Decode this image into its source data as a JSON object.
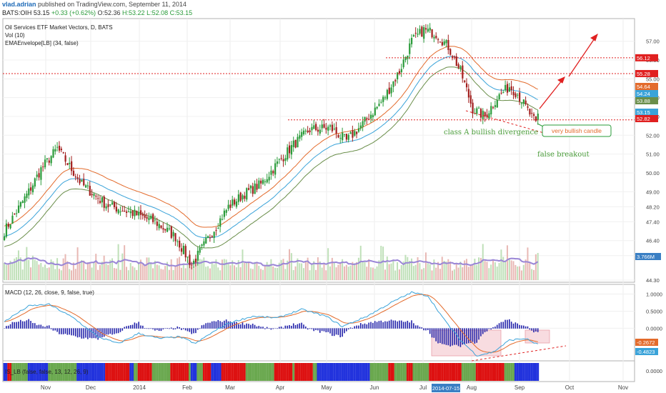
{
  "header": {
    "author": "vlad.adrian",
    "published_text": "published on TradingView.com, September 11, 2014",
    "symbol": "BATS:OIH",
    "last": "53.15",
    "change": "+0.33 (+0.62%)",
    "open": "O:52.36",
    "high": "H:53.22",
    "low": "L:52.08",
    "close": "C:53.15"
  },
  "indicators": {
    "title": "Oil Services ETF Market Vectors, D, BATS",
    "vol": "Vol (10)",
    "ema_env": "EMAEnvelope[LB] (34, false)",
    "macd": "MACD (12, 26, close, 9, false, true)",
    "is_lb": "IS_LB (false, false, 13, 12, 26, 9)"
  },
  "annotations": {
    "divergence": "class A bullish divergence",
    "bullish_candle": "very bullish candle",
    "false_breakout": "false breakout",
    "date_highlight": "2014-07-15"
  },
  "colors": {
    "up": "#2a9b3a",
    "down": "#a3201f",
    "ema_orange": "#e36b2c",
    "ema_blue": "#3aa3d9",
    "ema_green": "#6a8e4a",
    "hline": "#e02020",
    "macd_line": "#3aa3d9",
    "signal_line": "#e36b2c",
    "histogram": "#2222aa",
    "vol_ma": "#9a86d6"
  },
  "chart_data": {
    "type": "candlestick",
    "price_axis": {
      "ticks": [
        "57.00",
        "56.00",
        "55.00",
        "54.00",
        "53.00",
        "52.00",
        "51.00",
        "50.00",
        "49.00",
        "48.20",
        "47.40",
        "46.40",
        "45.60",
        "44.30"
      ],
      "ylim": [
        44.3,
        57.9
      ]
    },
    "price_labels": [
      {
        "value": 56.12,
        "text": "56.12",
        "color": "#e02020"
      },
      {
        "value": 55.28,
        "text": "55.28",
        "color": "#e02020"
      },
      {
        "value": 54.64,
        "text": "54.64",
        "color": "#e36b2c"
      },
      {
        "value": 54.24,
        "text": "54.24",
        "color": "#3aa3d9"
      },
      {
        "value": 53.88,
        "text": "53.88",
        "color": "#6a8e4a"
      },
      {
        "value": 53.15,
        "text": "53.15",
        "color": "#3aa3d9"
      },
      {
        "value": 52.82,
        "text": "52.82",
        "color": "#e02020"
      }
    ],
    "volume_label": "3.766M",
    "macd_axis": {
      "ticks": [
        "1.0000",
        "0.5000",
        "0.0000"
      ],
      "ylim": [
        -0.85,
        1.2
      ]
    },
    "macd_labels": [
      {
        "text": "-0.2672",
        "color": "#e36b2c"
      },
      {
        "text": "-0.4823",
        "color": "#3aa3d9"
      }
    ],
    "is_axis": {
      "ticks": [
        "0.0000"
      ]
    },
    "x_labels": [
      "Nov",
      "Dec",
      "2014",
      "Feb",
      "Mar",
      "Apr",
      "May",
      "Jun",
      "Jul",
      "Aug",
      "Sep",
      "Oct",
      "Nov"
    ],
    "hlines": [
      56.12,
      55.28,
      52.82
    ],
    "anchors": [
      [
        0,
        46.9
      ],
      [
        12,
        49.0
      ],
      [
        18,
        50.2
      ],
      [
        26,
        51.3
      ],
      [
        38,
        49.4
      ],
      [
        50,
        48.3
      ],
      [
        62,
        47.9
      ],
      [
        74,
        47.4
      ],
      [
        84,
        46.6
      ],
      [
        92,
        45.1
      ],
      [
        100,
        46.5
      ],
      [
        110,
        48.2
      ],
      [
        118,
        48.9
      ],
      [
        126,
        49.4
      ],
      [
        134,
        50.5
      ],
      [
        142,
        51.5
      ],
      [
        150,
        52.3
      ],
      [
        160,
        52.4
      ],
      [
        168,
        51.7
      ],
      [
        176,
        52.6
      ],
      [
        186,
        53.9
      ],
      [
        194,
        55.4
      ],
      [
        200,
        57.0
      ],
      [
        206,
        57.6
      ],
      [
        212,
        57.4
      ],
      [
        218,
        56.7
      ],
      [
        224,
        55.4
      ],
      [
        230,
        53.4
      ],
      [
        236,
        53.0
      ],
      [
        242,
        54.0
      ],
      [
        248,
        54.6
      ],
      [
        252,
        54.2
      ],
      [
        256,
        53.5
      ],
      [
        261,
        52.6
      ],
      [
        262,
        53.15
      ]
    ],
    "macd_anchors": [
      [
        0,
        0.2
      ],
      [
        12,
        0.65
      ],
      [
        22,
        0.7
      ],
      [
        34,
        0.3
      ],
      [
        46,
        -0.25
      ],
      [
        56,
        -0.45
      ],
      [
        66,
        -0.15
      ],
      [
        76,
        -0.3
      ],
      [
        86,
        -0.25
      ],
      [
        94,
        -0.45
      ],
      [
        100,
        -0.2
      ],
      [
        110,
        0.15
      ],
      [
        122,
        0.35
      ],
      [
        134,
        0.3
      ],
      [
        146,
        0.55
      ],
      [
        158,
        0.35
      ],
      [
        166,
        0.05
      ],
      [
        178,
        0.35
      ],
      [
        190,
        0.75
      ],
      [
        200,
        1.05
      ],
      [
        208,
        0.95
      ],
      [
        216,
        0.25
      ],
      [
        224,
        -0.35
      ],
      [
        232,
        -0.8
      ],
      [
        240,
        -0.7
      ],
      [
        248,
        -0.35
      ],
      [
        256,
        -0.3
      ],
      [
        262,
        -0.48
      ]
    ]
  }
}
